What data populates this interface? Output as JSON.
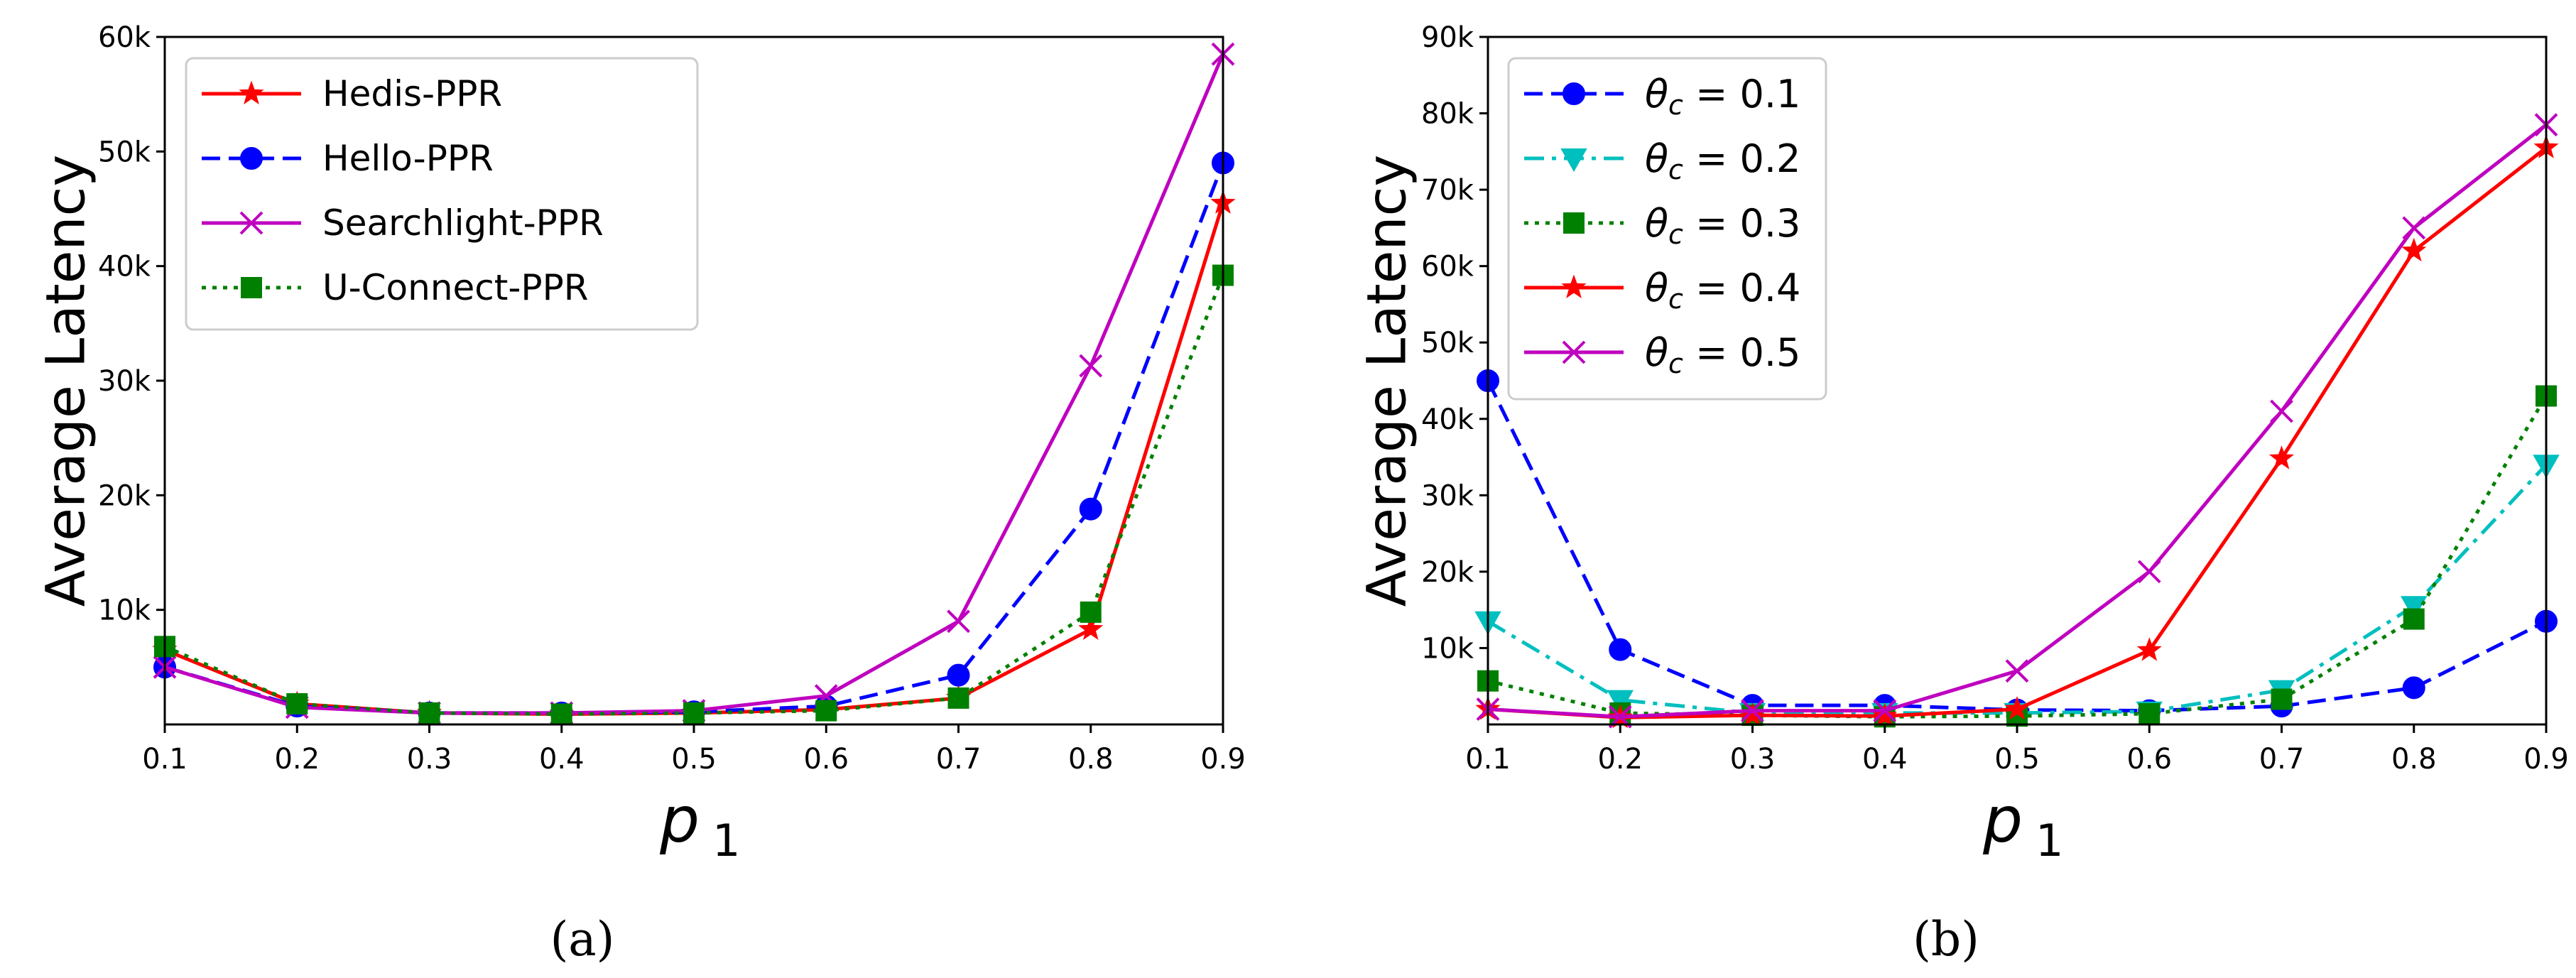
{
  "chart_data": [
    {
      "type": "line",
      "caption": "(a)",
      "xlabel": "p",
      "xlabel_sub": "1",
      "ylabel": "Average Latency",
      "x": [
        0.1,
        0.2,
        0.3,
        0.4,
        0.5,
        0.6,
        0.7,
        0.8,
        0.9
      ],
      "xlim": [
        0.1,
        0.9
      ],
      "ylim": [
        0,
        60000
      ],
      "xticks": [
        "0.1",
        "0.2",
        "0.3",
        "0.4",
        "0.5",
        "0.6",
        "0.7",
        "0.8",
        "0.9"
      ],
      "yticks": [
        {
          "value": 10000,
          "label": "10k"
        },
        {
          "value": 20000,
          "label": "20k"
        },
        {
          "value": 30000,
          "label": "30k"
        },
        {
          "value": 40000,
          "label": "40k"
        },
        {
          "value": 50000,
          "label": "50k"
        },
        {
          "value": 60000,
          "label": "60k"
        }
      ],
      "legend_position": "top-left",
      "grid": false,
      "series": [
        {
          "name": "Hedis-PPR",
          "color": "#ff0000",
          "dash": "solid",
          "marker": "star",
          "values": [
            6500,
            1800,
            1000,
            900,
            1000,
            1300,
            2300,
            8300,
            45500
          ]
        },
        {
          "name": "Hello-PPR",
          "color": "#0000ff",
          "dash": "dashed",
          "marker": "circle",
          "values": [
            5000,
            1600,
            1000,
            1000,
            1100,
            1600,
            4300,
            18800,
            49000
          ]
        },
        {
          "name": "Searchlight-PPR",
          "color": "#bf00bf",
          "dash": "solid",
          "marker": "x",
          "values": [
            5000,
            1500,
            1000,
            1000,
            1200,
            2500,
            9000,
            31300,
            58500
          ]
        },
        {
          "name": "U-Connect-PPR",
          "color": "#008000",
          "dash": "dotted",
          "marker": "square",
          "values": [
            6800,
            1800,
            1000,
            900,
            1000,
            1200,
            2300,
            9800,
            39200
          ]
        }
      ]
    },
    {
      "type": "line",
      "caption": "(b)",
      "xlabel": "p",
      "xlabel_sub": "1",
      "ylabel": "Average Latency",
      "x": [
        0.1,
        0.2,
        0.3,
        0.4,
        0.5,
        0.6,
        0.7,
        0.8,
        0.9
      ],
      "xlim": [
        0.1,
        0.9
      ],
      "ylim": [
        0,
        90000
      ],
      "xticks": [
        "0.1",
        "0.2",
        "0.3",
        "0.4",
        "0.5",
        "0.6",
        "0.7",
        "0.8",
        "0.9"
      ],
      "yticks": [
        {
          "value": 10000,
          "label": "10k"
        },
        {
          "value": 20000,
          "label": "20k"
        },
        {
          "value": 30000,
          "label": "30k"
        },
        {
          "value": 40000,
          "label": "40k"
        },
        {
          "value": 50000,
          "label": "50k"
        },
        {
          "value": 60000,
          "label": "60k"
        },
        {
          "value": 70000,
          "label": "70k"
        },
        {
          "value": 80000,
          "label": "80k"
        },
        {
          "value": 90000,
          "label": "90k"
        }
      ],
      "legend_position": "top-left",
      "grid": false,
      "series": [
        {
          "name": "θc = 0.1",
          "label_symbol": "θ",
          "label_sub": "c",
          "label_rest": " = 0.1",
          "color": "#0000ff",
          "dash": "dashed",
          "marker": "circle",
          "values": [
            45000,
            9800,
            2500,
            2500,
            1900,
            1800,
            2400,
            4800,
            13500
          ]
        },
        {
          "name": "θc = 0.2",
          "label_symbol": "θ",
          "label_sub": "c",
          "label_rest": " = 0.2",
          "color": "#00bfbf",
          "dash": "dashdot",
          "marker": "triangle-down",
          "values": [
            13500,
            3200,
            1500,
            1500,
            1500,
            1700,
            4500,
            15500,
            34000
          ]
        },
        {
          "name": "θc = 0.3",
          "label_symbol": "θ",
          "label_sub": "c",
          "label_rest": " = 0.3",
          "color": "#008000",
          "dash": "dotted",
          "marker": "square",
          "values": [
            5700,
            1500,
            1200,
            1000,
            1100,
            1400,
            3300,
            13800,
            43000
          ]
        },
        {
          "name": "θc = 0.4",
          "label_symbol": "θ",
          "label_sub": "c",
          "label_rest": " = 0.4",
          "color": "#ff0000",
          "dash": "solid",
          "marker": "star",
          "values": [
            2000,
            900,
            1200,
            1100,
            2000,
            9700,
            34800,
            62000,
            75500
          ]
        },
        {
          "name": "θc = 0.5",
          "label_symbol": "θ",
          "label_sub": "c",
          "label_rest": " = 0.5",
          "color": "#bf00bf",
          "dash": "solid",
          "marker": "x",
          "values": [
            2000,
            1000,
            1800,
            1800,
            7000,
            20000,
            41000,
            65000,
            78500
          ]
        }
      ]
    }
  ]
}
